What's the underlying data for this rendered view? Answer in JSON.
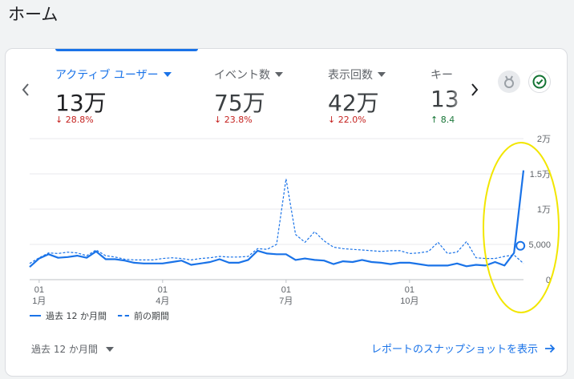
{
  "page": {
    "title": "ホーム"
  },
  "metrics": [
    {
      "label": "アクティブ ユーザー",
      "value": "13万",
      "delta": "28.8%",
      "direction": "down"
    },
    {
      "label": "イベント数",
      "value": "75万",
      "delta": "23.8%",
      "direction": "down"
    },
    {
      "label": "表示回数",
      "value": "42万",
      "delta": "22.0%",
      "direction": "down"
    },
    {
      "label": "キー",
      "value": "13",
      "delta": "8.4",
      "direction": "up"
    }
  ],
  "icons": {
    "prev": "chevron-left-icon",
    "next": "chevron-right-icon",
    "insights": "insights-icon",
    "check": "check-circle-icon",
    "arrow": "arrow-right-icon"
  },
  "colors": {
    "accent": "#1a73e8",
    "down": "#c5221f",
    "up": "#137333",
    "highlight": "#f2e600"
  },
  "chart_data": {
    "type": "line",
    "x_tick_labels": [
      {
        "day": "01",
        "month": "1月"
      },
      {
        "day": "01",
        "month": "4月"
      },
      {
        "day": "01",
        "month": "7月"
      },
      {
        "day": "01",
        "month": "10月"
      }
    ],
    "y_tick_labels": [
      "0",
      "5,000",
      "1万",
      "1.5万",
      "2万"
    ],
    "ylim": [
      0,
      20000
    ],
    "grid": true,
    "legend_position": "bottom-left",
    "series": [
      {
        "name": "過去 12 か月間",
        "style": "solid",
        "values": [
          1800,
          3000,
          3600,
          3100,
          3200,
          3400,
          3100,
          4000,
          2900,
          2900,
          2700,
          2400,
          2300,
          2300,
          2300,
          2500,
          2700,
          2100,
          2300,
          2500,
          2900,
          2400,
          2400,
          2800,
          4100,
          3700,
          3600,
          3600,
          2800,
          3000,
          2800,
          2700,
          2200,
          2600,
          2500,
          2800,
          2500,
          2400,
          2200,
          2400,
          2400,
          2200,
          2000,
          2000,
          2000,
          2300,
          1900,
          2100,
          2000,
          2500,
          2000,
          3800,
          15500
        ]
      },
      {
        "name": "前の期間",
        "style": "dashed",
        "values": [
          2300,
          3100,
          3800,
          3700,
          3900,
          3800,
          3400,
          4200,
          3400,
          3200,
          2900,
          2800,
          2800,
          2800,
          3000,
          3100,
          3000,
          2800,
          3000,
          3100,
          3300,
          3200,
          3200,
          3300,
          4400,
          4300,
          5000,
          14300,
          6400,
          5300,
          6800,
          5500,
          4600,
          4400,
          4300,
          4200,
          4100,
          4000,
          4100,
          4100,
          3700,
          3800,
          4000,
          5300,
          3700,
          3900,
          5400,
          3100,
          3000,
          3000,
          3300,
          3500,
          2300
        ]
      }
    ],
    "highlight_annotation": "ellipse around last point"
  },
  "legend": {
    "current": "過去 12 か月間",
    "previous": "前の期間"
  },
  "footer": {
    "period_label": "過去 12 か月間",
    "report_link": "レポートのスナップショットを表示"
  }
}
